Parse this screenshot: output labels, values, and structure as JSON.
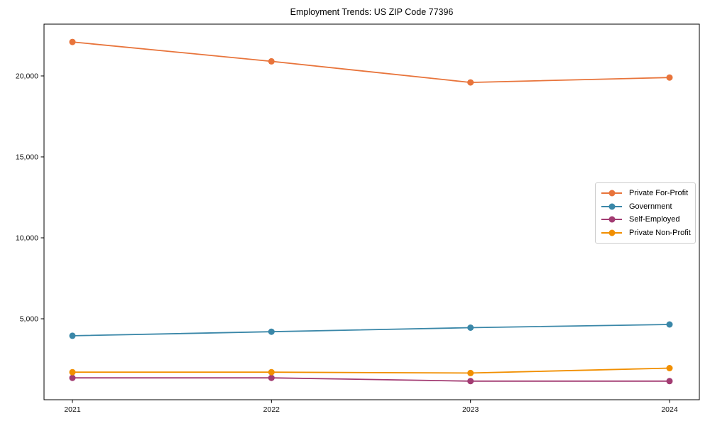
{
  "chart_data": {
    "type": "line",
    "title": "Employment Trends: US ZIP Code 77396",
    "x": [
      "2021",
      "2022",
      "2023",
      "2024"
    ],
    "xlabel": "",
    "ylabel": "",
    "y_ticks": [
      {
        "value": 5000,
        "label": "5,000"
      },
      {
        "value": 10000,
        "label": "10,000"
      },
      {
        "value": 15000,
        "label": "15,000"
      },
      {
        "value": 20000,
        "label": "20,000"
      }
    ],
    "series": [
      {
        "name": "Private For-Profit",
        "color": "#E8743B",
        "values": [
          22100,
          20900,
          19600,
          19900
        ]
      },
      {
        "name": "Government",
        "color": "#3A87A8",
        "values": [
          3950,
          4200,
          4450,
          4650
        ]
      },
      {
        "name": "Self-Employed",
        "color": "#A23B72",
        "values": [
          1350,
          1350,
          1150,
          1150
        ]
      },
      {
        "name": "Private Non-Profit",
        "color": "#F18F01",
        "values": [
          1700,
          1700,
          1650,
          1950
        ]
      }
    ],
    "ylim": [
      0,
      23200
    ],
    "grid": false,
    "legend_position": "right",
    "marker": "circle"
  }
}
